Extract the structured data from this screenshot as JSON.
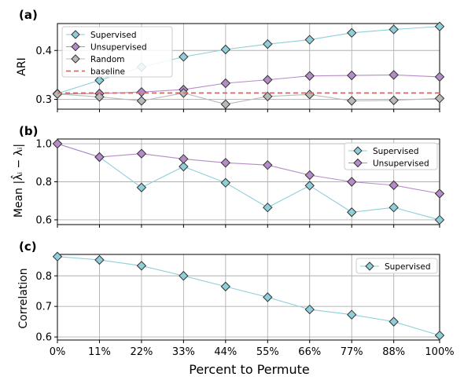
{
  "figure": {
    "xlabel": "Percent to Permute",
    "xtick_labels": [
      "0%",
      "11%",
      "22%",
      "33%",
      "44%",
      "55%",
      "66%",
      "77%",
      "88%",
      "100%"
    ]
  },
  "colors": {
    "supervised": "#8ecfd9",
    "unsupervised": "#b58cc9",
    "random": "#b9b9b9",
    "baseline": "#d07068",
    "grid": "#b0b0b0",
    "marker_edge": "#333333"
  },
  "chart_data": [
    {
      "panel": "(a)",
      "type": "line",
      "ylabel": "ARI",
      "x": [
        0,
        11,
        22,
        33,
        44,
        55,
        66,
        77,
        88,
        100
      ],
      "ylim": [
        0.28,
        0.455
      ],
      "yticks": [
        0.3,
        0.4
      ],
      "ytick_labels": [
        "0.3",
        "0.4"
      ],
      "grid": true,
      "legend": "upper-left",
      "series": [
        {
          "name": "Supervised",
          "key": "supervised",
          "marker": "diamond",
          "values": [
            0.312,
            0.339,
            0.366,
            0.387,
            0.402,
            0.413,
            0.422,
            0.436,
            0.443,
            0.449
          ]
        },
        {
          "name": "Unsupervised",
          "key": "unsupervised",
          "marker": "diamond",
          "values": [
            0.311,
            0.312,
            0.315,
            0.32,
            0.333,
            0.34,
            0.348,
            0.349,
            0.35,
            0.346
          ]
        },
        {
          "name": "Random",
          "key": "random",
          "marker": "diamond",
          "values": [
            0.311,
            0.305,
            0.297,
            0.313,
            0.29,
            0.306,
            0.31,
            0.297,
            0.298,
            0.302
          ]
        },
        {
          "name": "baseline",
          "key": "baseline",
          "style": "dashed",
          "constant": 0.313
        }
      ]
    },
    {
      "panel": "(b)",
      "type": "line",
      "ylabel": "Mean |λ̂ᵢ − λᵢ|",
      "x": [
        0,
        11,
        22,
        33,
        44,
        55,
        66,
        77,
        88,
        100
      ],
      "ylim": [
        0.575,
        1.025
      ],
      "yticks": [
        0.6,
        0.8,
        1.0
      ],
      "ytick_labels": [
        "0.6",
        "0.8",
        "1.0"
      ],
      "grid": true,
      "legend": "upper-right",
      "series": [
        {
          "name": "Supervised",
          "key": "supervised",
          "marker": "diamond",
          "values": [
            1.0,
            0.93,
            0.77,
            0.88,
            0.795,
            0.665,
            0.78,
            0.64,
            0.665,
            0.6
          ]
        },
        {
          "name": "Unsupervised",
          "key": "unsupervised",
          "marker": "diamond",
          "values": [
            1.0,
            0.93,
            0.948,
            0.92,
            0.9,
            0.888,
            0.835,
            0.8,
            0.782,
            0.738
          ]
        }
      ]
    },
    {
      "panel": "(c)",
      "type": "line",
      "ylabel": "Correlation",
      "x": [
        0,
        11,
        22,
        33,
        44,
        55,
        66,
        77,
        88,
        100
      ],
      "ylim": [
        0.59,
        0.87
      ],
      "yticks": [
        0.6,
        0.7,
        0.8
      ],
      "ytick_labels": [
        "0.6",
        "0.7",
        "0.8"
      ],
      "grid": true,
      "legend": "upper-right",
      "series": [
        {
          "name": "Supervised",
          "key": "supervised",
          "marker": "diamond",
          "values": [
            0.863,
            0.852,
            0.833,
            0.8,
            0.765,
            0.73,
            0.69,
            0.673,
            0.65,
            0.605
          ]
        }
      ]
    }
  ]
}
